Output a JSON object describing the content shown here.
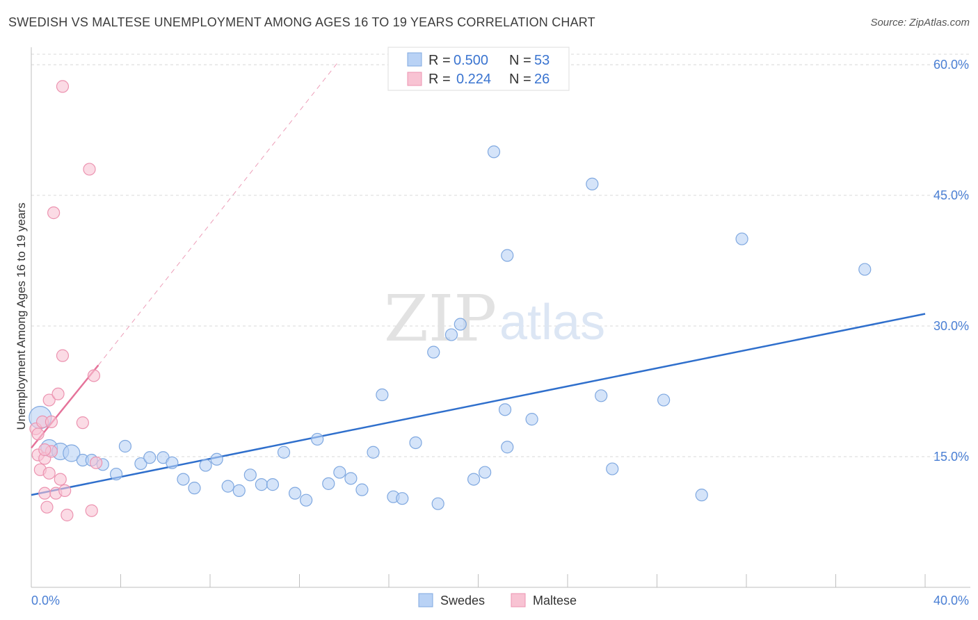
{
  "title": "SWEDISH VS MALTESE UNEMPLOYMENT AMONG AGES 16 TO 19 YEARS CORRELATION CHART",
  "source": "Source: ZipAtlas.com",
  "watermark": {
    "zip": "ZIP",
    "atlas": "atlas"
  },
  "legend": {
    "r_label": "R =",
    "n_label": "N =",
    "rows": [
      {
        "r": "0.500",
        "n": "53"
      },
      {
        "r": "0.224",
        "n": "26"
      }
    ]
  },
  "colors": {
    "swedes_fill": "#b9d2f5",
    "swedes_stroke": "#7fa8e0",
    "swedes_line": "#2f6fcc",
    "maltese_fill": "#f8c3d3",
    "maltese_stroke": "#ec93b0",
    "maltese_line": "#e5739a",
    "grid": "#d8d8d8",
    "tick_label": "#4a7fd4"
  },
  "chart_data": {
    "type": "scatter",
    "title": "SWEDISH VS MALTESE UNEMPLOYMENT AMONG AGES 16 TO 19 YEARS CORRELATION CHART",
    "xlabel": "",
    "ylabel": "Unemployment Among Ages 16 to 19 years",
    "xlim": [
      0,
      40
    ],
    "ylim": [
      0,
      62
    ],
    "x_tick_labels": [
      "0.0%",
      "40.0%"
    ],
    "y_ticks": [
      15,
      30,
      45,
      60
    ],
    "y_tick_labels": [
      "15.0%",
      "30.0%",
      "45.0%",
      "60.0%"
    ],
    "grid": true,
    "legend_position": "top-center",
    "series": [
      {
        "name": "Swedes",
        "points": [
          [
            0.4,
            19.5,
            "big"
          ],
          [
            0.8,
            16.0,
            "mid"
          ],
          [
            1.3,
            15.6,
            "mid"
          ],
          [
            1.8,
            15.4,
            "mid"
          ],
          [
            2.3,
            14.6
          ],
          [
            2.7,
            14.6
          ],
          [
            3.2,
            14.1
          ],
          [
            3.8,
            13.0
          ],
          [
            4.2,
            16.2
          ],
          [
            4.9,
            14.2
          ],
          [
            5.3,
            14.9
          ],
          [
            5.9,
            14.9
          ],
          [
            6.3,
            14.3
          ],
          [
            6.8,
            12.4
          ],
          [
            7.3,
            11.4
          ],
          [
            7.8,
            14.0
          ],
          [
            8.3,
            14.7
          ],
          [
            8.8,
            11.6
          ],
          [
            9.3,
            11.1
          ],
          [
            9.8,
            12.9
          ],
          [
            10.3,
            11.8
          ],
          [
            10.8,
            11.8
          ],
          [
            11.3,
            15.5
          ],
          [
            11.8,
            10.8
          ],
          [
            12.3,
            10.0
          ],
          [
            12.8,
            17.0
          ],
          [
            13.3,
            11.9
          ],
          [
            13.8,
            13.2
          ],
          [
            14.3,
            12.5
          ],
          [
            14.8,
            11.2
          ],
          [
            15.3,
            15.5
          ],
          [
            15.7,
            22.1
          ],
          [
            16.2,
            10.4
          ],
          [
            16.6,
            10.2
          ],
          [
            17.2,
            16.6
          ],
          [
            18.0,
            27.0
          ],
          [
            18.2,
            9.6
          ],
          [
            18.8,
            29.0
          ],
          [
            19.2,
            30.2
          ],
          [
            19.8,
            12.4
          ],
          [
            20.3,
            13.2
          ],
          [
            20.7,
            50.0
          ],
          [
            21.2,
            20.4
          ],
          [
            21.3,
            38.1
          ],
          [
            21.3,
            16.1
          ],
          [
            22.4,
            19.3
          ],
          [
            25.5,
            22.0
          ],
          [
            25.1,
            46.3
          ],
          [
            26.0,
            13.6
          ],
          [
            28.3,
            21.5
          ],
          [
            30.0,
            10.6
          ],
          [
            31.8,
            40.0
          ],
          [
            37.3,
            36.5
          ]
        ]
      },
      {
        "name": "Maltese",
        "points": [
          [
            0.2,
            18.2
          ],
          [
            0.3,
            17.6
          ],
          [
            0.3,
            15.2
          ],
          [
            0.4,
            13.5
          ],
          [
            0.5,
            19.0
          ],
          [
            0.6,
            10.8
          ],
          [
            0.6,
            14.8
          ],
          [
            0.7,
            9.2
          ],
          [
            0.8,
            13.1
          ],
          [
            0.8,
            21.5
          ],
          [
            0.9,
            15.6
          ],
          [
            0.9,
            19.0
          ],
          [
            1.0,
            43.0
          ],
          [
            1.1,
            10.8
          ],
          [
            1.2,
            22.2
          ],
          [
            1.3,
            12.4
          ],
          [
            1.4,
            26.6
          ],
          [
            1.4,
            57.5
          ],
          [
            1.5,
            11.1
          ],
          [
            1.6,
            8.3
          ],
          [
            2.3,
            18.9
          ],
          [
            2.6,
            48.0
          ],
          [
            2.7,
            8.8
          ],
          [
            2.8,
            24.3
          ],
          [
            2.9,
            14.3
          ],
          [
            0.6,
            15.8
          ]
        ]
      }
    ],
    "trend_lines": [
      {
        "series": "Swedes",
        "x": [
          0,
          40
        ],
        "y": [
          10.6,
          31.4
        ],
        "style": "solid"
      },
      {
        "series": "Maltese",
        "x": [
          0,
          3.0
        ],
        "y": [
          16.0,
          25.5
        ],
        "style": "solid"
      },
      {
        "series": "Maltese",
        "x": [
          3.0,
          13.7
        ],
        "y": [
          25.5,
          60.2
        ],
        "style": "dashed"
      }
    ]
  },
  "bottom_legend": [
    {
      "label": "Swedes"
    },
    {
      "label": "Maltese"
    }
  ]
}
